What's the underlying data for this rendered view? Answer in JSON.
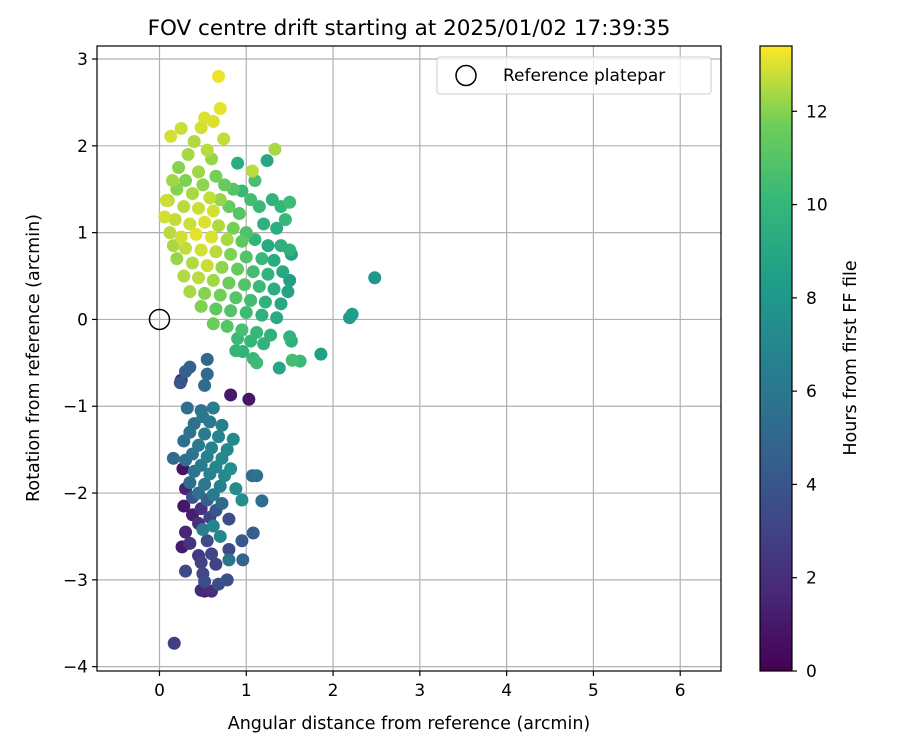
{
  "chart_data": {
    "type": "scatter",
    "title": "FOV centre drift starting at 2025/01/02 17:39:35",
    "xlabel": "Angular distance from reference (arcmin)",
    "ylabel": "Rotation from reference (arcmin)",
    "xlim": [
      -0.72,
      6.47
    ],
    "ylim": [
      -4.05,
      3.15
    ],
    "xticks": [
      0,
      1,
      2,
      3,
      4,
      5,
      6
    ],
    "yticks": [
      -4,
      -3,
      -2,
      -1,
      0,
      1,
      2,
      3
    ],
    "grid": true,
    "legend": {
      "placement": "top-right",
      "entries": [
        "Reference platepar"
      ]
    },
    "reference_point": {
      "x": 0,
      "y": 0
    },
    "colorbar": {
      "label": "Hours from first FF file",
      "range": [
        0,
        13.4
      ],
      "ticks": [
        0,
        2,
        4,
        6,
        8,
        10,
        12
      ],
      "colormap": "viridis"
    },
    "series": [
      {
        "points": [
          {
            "x": 0.17,
            "y": -3.73,
            "c": 2.8
          },
          {
            "x": 0.68,
            "y": 2.8,
            "c": 13.2
          },
          {
            "x": 0.7,
            "y": 2.43,
            "c": 13.1
          },
          {
            "x": 0.52,
            "y": 2.32,
            "c": 13.0
          },
          {
            "x": 0.62,
            "y": 2.28,
            "c": 13.0
          },
          {
            "x": 0.25,
            "y": 2.2,
            "c": 12.8
          },
          {
            "x": 0.13,
            "y": 2.11,
            "c": 12.9
          },
          {
            "x": 0.48,
            "y": 2.21,
            "c": 12.9
          },
          {
            "x": 0.74,
            "y": 2.08,
            "c": 12.7
          },
          {
            "x": 1.33,
            "y": 1.96,
            "c": 12.4
          },
          {
            "x": 1.24,
            "y": 1.83,
            "c": 9.0
          },
          {
            "x": 0.9,
            "y": 1.8,
            "c": 9.3
          },
          {
            "x": 1.07,
            "y": 1.71,
            "c": 12.6
          },
          {
            "x": 0.4,
            "y": 2.05,
            "c": 12.5
          },
          {
            "x": 0.55,
            "y": 1.95,
            "c": 12.6
          },
          {
            "x": 0.33,
            "y": 1.9,
            "c": 12.4
          },
          {
            "x": 0.6,
            "y": 1.85,
            "c": 12.2
          },
          {
            "x": 0.22,
            "y": 1.75,
            "c": 12.0
          },
          {
            "x": 0.45,
            "y": 1.7,
            "c": 12.3
          },
          {
            "x": 0.65,
            "y": 1.65,
            "c": 11.8
          },
          {
            "x": 0.3,
            "y": 1.6,
            "c": 11.9
          },
          {
            "x": 0.5,
            "y": 1.55,
            "c": 12.1
          },
          {
            "x": 0.75,
            "y": 1.55,
            "c": 11.5
          },
          {
            "x": 0.85,
            "y": 1.5,
            "c": 11.0
          },
          {
            "x": 0.95,
            "y": 1.48,
            "c": 10.2
          },
          {
            "x": 0.2,
            "y": 1.5,
            "c": 12.0
          },
          {
            "x": 0.38,
            "y": 1.45,
            "c": 12.4
          },
          {
            "x": 0.58,
            "y": 1.4,
            "c": 12.7
          },
          {
            "x": 0.7,
            "y": 1.38,
            "c": 12.2
          },
          {
            "x": 0.1,
            "y": 1.37,
            "c": 12.5
          },
          {
            "x": 0.28,
            "y": 1.3,
            "c": 12.6
          },
          {
            "x": 0.45,
            "y": 1.28,
            "c": 12.8
          },
          {
            "x": 0.62,
            "y": 1.25,
            "c": 12.9
          },
          {
            "x": 0.8,
            "y": 1.3,
            "c": 11.4
          },
          {
            "x": 0.92,
            "y": 1.22,
            "c": 11.0
          },
          {
            "x": 1.05,
            "y": 1.38,
            "c": 10.5
          },
          {
            "x": 1.15,
            "y": 1.3,
            "c": 10.1
          },
          {
            "x": 1.3,
            "y": 1.38,
            "c": 9.8
          },
          {
            "x": 1.4,
            "y": 1.3,
            "c": 10.0
          },
          {
            "x": 1.5,
            "y": 1.35,
            "c": 10.3
          },
          {
            "x": 1.45,
            "y": 1.15,
            "c": 10.1
          },
          {
            "x": 1.2,
            "y": 1.1,
            "c": 9.6
          },
          {
            "x": 1.35,
            "y": 1.05,
            "c": 9.4
          },
          {
            "x": 0.06,
            "y": 1.18,
            "c": 12.9
          },
          {
            "x": 0.18,
            "y": 1.15,
            "c": 12.7
          },
          {
            "x": 0.35,
            "y": 1.1,
            "c": 12.8
          },
          {
            "x": 0.52,
            "y": 1.12,
            "c": 13.0
          },
          {
            "x": 0.68,
            "y": 1.08,
            "c": 12.5
          },
          {
            "x": 0.85,
            "y": 1.05,
            "c": 11.8
          },
          {
            "x": 1.0,
            "y": 1.0,
            "c": 10.8
          },
          {
            "x": 0.12,
            "y": 1.0,
            "c": 12.6
          },
          {
            "x": 0.25,
            "y": 0.95,
            "c": 12.9
          },
          {
            "x": 0.42,
            "y": 0.98,
            "c": 13.1
          },
          {
            "x": 0.6,
            "y": 0.95,
            "c": 13.0
          },
          {
            "x": 0.78,
            "y": 0.92,
            "c": 12.4
          },
          {
            "x": 0.95,
            "y": 0.9,
            "c": 11.3
          },
          {
            "x": 1.1,
            "y": 0.92,
            "c": 9.9
          },
          {
            "x": 1.25,
            "y": 0.85,
            "c": 9.2
          },
          {
            "x": 1.4,
            "y": 0.85,
            "c": 9.5
          },
          {
            "x": 1.5,
            "y": 0.8,
            "c": 9.7
          },
          {
            "x": 1.52,
            "y": 0.75,
            "c": 8.6
          },
          {
            "x": 0.16,
            "y": 0.85,
            "c": 12.4
          },
          {
            "x": 0.3,
            "y": 0.82,
            "c": 12.7
          },
          {
            "x": 0.48,
            "y": 0.8,
            "c": 12.9
          },
          {
            "x": 0.65,
            "y": 0.78,
            "c": 12.6
          },
          {
            "x": 0.82,
            "y": 0.75,
            "c": 11.9
          },
          {
            "x": 1.0,
            "y": 0.72,
            "c": 10.9
          },
          {
            "x": 1.18,
            "y": 0.7,
            "c": 10.1
          },
          {
            "x": 1.32,
            "y": 0.68,
            "c": 9.3
          },
          {
            "x": 0.2,
            "y": 0.7,
            "c": 12.2
          },
          {
            "x": 0.38,
            "y": 0.65,
            "c": 12.5
          },
          {
            "x": 0.55,
            "y": 0.62,
            "c": 12.8
          },
          {
            "x": 0.72,
            "y": 0.6,
            "c": 12.1
          },
          {
            "x": 0.9,
            "y": 0.58,
            "c": 11.4
          },
          {
            "x": 1.08,
            "y": 0.55,
            "c": 10.5
          },
          {
            "x": 1.25,
            "y": 0.52,
            "c": 9.8
          },
          {
            "x": 1.42,
            "y": 0.55,
            "c": 9.1
          },
          {
            "x": 1.5,
            "y": 0.45,
            "c": 8.5
          },
          {
            "x": 0.28,
            "y": 0.5,
            "c": 12.5
          },
          {
            "x": 0.45,
            "y": 0.48,
            "c": 12.6
          },
          {
            "x": 0.62,
            "y": 0.45,
            "c": 12.3
          },
          {
            "x": 0.8,
            "y": 0.42,
            "c": 11.6
          },
          {
            "x": 0.98,
            "y": 0.4,
            "c": 10.9
          },
          {
            "x": 1.15,
            "y": 0.38,
            "c": 10.2
          },
          {
            "x": 1.32,
            "y": 0.35,
            "c": 9.4
          },
          {
            "x": 1.48,
            "y": 0.32,
            "c": 8.8
          },
          {
            "x": 0.35,
            "y": 0.32,
            "c": 12.4
          },
          {
            "x": 0.52,
            "y": 0.3,
            "c": 12.0
          },
          {
            "x": 0.7,
            "y": 0.28,
            "c": 11.7
          },
          {
            "x": 0.88,
            "y": 0.25,
            "c": 11.0
          },
          {
            "x": 1.05,
            "y": 0.22,
            "c": 10.4
          },
          {
            "x": 1.22,
            "y": 0.2,
            "c": 9.7
          },
          {
            "x": 1.4,
            "y": 0.18,
            "c": 9.0
          },
          {
            "x": 0.48,
            "y": 0.15,
            "c": 11.9
          },
          {
            "x": 0.65,
            "y": 0.12,
            "c": 11.3
          },
          {
            "x": 0.82,
            "y": 0.1,
            "c": 10.9
          },
          {
            "x": 1.0,
            "y": 0.08,
            "c": 10.3
          },
          {
            "x": 1.18,
            "y": 0.05,
            "c": 9.6
          },
          {
            "x": 1.35,
            "y": 0.02,
            "c": 9.2
          },
          {
            "x": 0.62,
            "y": -0.05,
            "c": 11.6
          },
          {
            "x": 0.78,
            "y": -0.08,
            "c": 11.0
          },
          {
            "x": 0.95,
            "y": -0.12,
            "c": 10.6
          },
          {
            "x": 1.12,
            "y": -0.15,
            "c": 10.1
          },
          {
            "x": 1.28,
            "y": -0.18,
            "c": 9.6
          },
          {
            "x": 0.9,
            "y": -0.22,
            "c": 10.2
          },
          {
            "x": 1.05,
            "y": -0.25,
            "c": 10.0
          },
          {
            "x": 1.2,
            "y": -0.28,
            "c": 9.8
          },
          {
            "x": 0.88,
            "y": -0.36,
            "c": 9.9
          },
          {
            "x": 0.96,
            "y": -0.37,
            "c": 9.7
          },
          {
            "x": 1.08,
            "y": -0.45,
            "c": 10.1
          },
          {
            "x": 1.12,
            "y": -0.5,
            "c": 10.3
          },
          {
            "x": 1.38,
            "y": -0.56,
            "c": 8.9
          },
          {
            "x": 1.53,
            "y": -0.47,
            "c": 10.4
          },
          {
            "x": 1.62,
            "y": -0.48,
            "c": 10.2
          },
          {
            "x": 1.5,
            "y": -0.2,
            "c": 9.8
          },
          {
            "x": 1.52,
            "y": -0.25,
            "c": 9.5
          },
          {
            "x": 1.86,
            "y": -0.4,
            "c": 8.5
          },
          {
            "x": 2.19,
            "y": 0.02,
            "c": 8.3
          },
          {
            "x": 2.22,
            "y": 0.06,
            "c": 8.4
          },
          {
            "x": 2.48,
            "y": 0.48,
            "c": 7.9
          },
          {
            "x": 1.1,
            "y": 1.6,
            "c": 10.6
          },
          {
            "x": 0.15,
            "y": 1.6,
            "c": 12.3
          },
          {
            "x": 0.08,
            "y": 1.37,
            "c": 12.8
          },
          {
            "x": 0.55,
            "y": -0.46,
            "c": 5.0
          },
          {
            "x": 0.35,
            "y": -0.55,
            "c": 4.7
          },
          {
            "x": 0.3,
            "y": -0.6,
            "c": 4.5
          },
          {
            "x": 0.55,
            "y": -0.63,
            "c": 5.2
          },
          {
            "x": 0.25,
            "y": -0.7,
            "c": 1.5
          },
          {
            "x": 0.24,
            "y": -0.73,
            "c": 4.0
          },
          {
            "x": 0.52,
            "y": -0.76,
            "c": 5.3
          },
          {
            "x": 0.82,
            "y": -0.87,
            "c": 1.0
          },
          {
            "x": 1.03,
            "y": -0.92,
            "c": 0.9
          },
          {
            "x": 0.32,
            "y": -1.02,
            "c": 5.4
          },
          {
            "x": 0.48,
            "y": -1.05,
            "c": 5.8
          },
          {
            "x": 0.62,
            "y": -1.02,
            "c": 6.4
          },
          {
            "x": 0.5,
            "y": -1.12,
            "c": 6.0
          },
          {
            "x": 0.4,
            "y": -1.2,
            "c": 5.6
          },
          {
            "x": 0.58,
            "y": -1.18,
            "c": 6.2
          },
          {
            "x": 0.72,
            "y": -1.22,
            "c": 6.5
          },
          {
            "x": 0.35,
            "y": -1.3,
            "c": 5.7
          },
          {
            "x": 0.52,
            "y": -1.32,
            "c": 6.3
          },
          {
            "x": 0.68,
            "y": -1.35,
            "c": 6.8
          },
          {
            "x": 0.85,
            "y": -1.38,
            "c": 7.2
          },
          {
            "x": 0.28,
            "y": -1.4,
            "c": 5.5
          },
          {
            "x": 0.45,
            "y": -1.45,
            "c": 6.1
          },
          {
            "x": 0.6,
            "y": -1.48,
            "c": 6.7
          },
          {
            "x": 0.78,
            "y": -1.5,
            "c": 7.0
          },
          {
            "x": 0.38,
            "y": -1.55,
            "c": 5.9
          },
          {
            "x": 0.55,
            "y": -1.58,
            "c": 6.5
          },
          {
            "x": 0.72,
            "y": -1.6,
            "c": 7.1
          },
          {
            "x": 0.16,
            "y": -1.6,
            "c": 5.2
          },
          {
            "x": 0.3,
            "y": -1.62,
            "c": 5.6
          },
          {
            "x": 0.48,
            "y": -1.68,
            "c": 6.2
          },
          {
            "x": 0.65,
            "y": -1.7,
            "c": 6.9
          },
          {
            "x": 0.82,
            "y": -1.72,
            "c": 7.4
          },
          {
            "x": 0.27,
            "y": -1.72,
            "c": 0.8
          },
          {
            "x": 0.4,
            "y": -1.75,
            "c": 5.8
          },
          {
            "x": 0.58,
            "y": -1.78,
            "c": 6.6
          },
          {
            "x": 0.75,
            "y": -1.8,
            "c": 7.2
          },
          {
            "x": 1.07,
            "y": -1.8,
            "c": 5.3
          },
          {
            "x": 1.12,
            "y": -1.8,
            "c": 5.6
          },
          {
            "x": 0.35,
            "y": -1.88,
            "c": 5.3
          },
          {
            "x": 0.52,
            "y": -1.9,
            "c": 6.0
          },
          {
            "x": 0.7,
            "y": -1.92,
            "c": 6.6
          },
          {
            "x": 0.88,
            "y": -1.95,
            "c": 7.3
          },
          {
            "x": 0.3,
            "y": -1.95,
            "c": 1.5
          },
          {
            "x": 0.45,
            "y": -2.0,
            "c": 5.6
          },
          {
            "x": 0.62,
            "y": -2.02,
            "c": 6.2
          },
          {
            "x": 0.95,
            "y": -2.08,
            "c": 7.4
          },
          {
            "x": 1.18,
            "y": -2.09,
            "c": 5.4
          },
          {
            "x": 0.38,
            "y": -2.05,
            "c": 3.8
          },
          {
            "x": 0.55,
            "y": -2.08,
            "c": 4.5
          },
          {
            "x": 0.72,
            "y": -2.12,
            "c": 5.0
          },
          {
            "x": 0.28,
            "y": -2.15,
            "c": 1.0
          },
          {
            "x": 0.48,
            "y": -2.18,
            "c": 2.2
          },
          {
            "x": 0.65,
            "y": -2.2,
            "c": 4.0
          },
          {
            "x": 0.38,
            "y": -2.25,
            "c": 1.2
          },
          {
            "x": 0.58,
            "y": -2.28,
            "c": 3.0
          },
          {
            "x": 0.8,
            "y": -2.3,
            "c": 3.6
          },
          {
            "x": 0.45,
            "y": -2.35,
            "c": 2.0
          },
          {
            "x": 0.62,
            "y": -2.38,
            "c": 6.8
          },
          {
            "x": 0.5,
            "y": -2.42,
            "c": 6.4
          },
          {
            "x": 0.3,
            "y": -2.45,
            "c": 1.6
          },
          {
            "x": 1.08,
            "y": -2.46,
            "c": 4.4
          },
          {
            "x": 0.7,
            "y": -2.5,
            "c": 7.0
          },
          {
            "x": 0.95,
            "y": -2.55,
            "c": 4.2
          },
          {
            "x": 0.55,
            "y": -2.55,
            "c": 3.4
          },
          {
            "x": 0.35,
            "y": -2.58,
            "c": 2.3
          },
          {
            "x": 0.26,
            "y": -2.62,
            "c": 1.1
          },
          {
            "x": 0.8,
            "y": -2.65,
            "c": 3.3
          },
          {
            "x": 0.6,
            "y": -2.7,
            "c": 3.1
          },
          {
            "x": 0.45,
            "y": -2.72,
            "c": 2.6
          },
          {
            "x": 0.96,
            "y": -2.77,
            "c": 4.9
          },
          {
            "x": 0.8,
            "y": -2.77,
            "c": 5.8
          },
          {
            "x": 0.48,
            "y": -2.8,
            "c": 2.9
          },
          {
            "x": 0.65,
            "y": -2.82,
            "c": 3.0
          },
          {
            "x": 0.3,
            "y": -2.9,
            "c": 3.3
          },
          {
            "x": 0.5,
            "y": -2.93,
            "c": 3.2
          },
          {
            "x": 0.78,
            "y": -3.0,
            "c": 3.7
          },
          {
            "x": 0.52,
            "y": -3.02,
            "c": 3.5
          },
          {
            "x": 0.68,
            "y": -3.05,
            "c": 3.5
          },
          {
            "x": 0.48,
            "y": -3.12,
            "c": 1.8
          },
          {
            "x": 0.6,
            "y": -3.13,
            "c": 1.9
          },
          {
            "x": 0.52,
            "y": -3.13,
            "c": 1.2
          }
        ]
      }
    ]
  }
}
